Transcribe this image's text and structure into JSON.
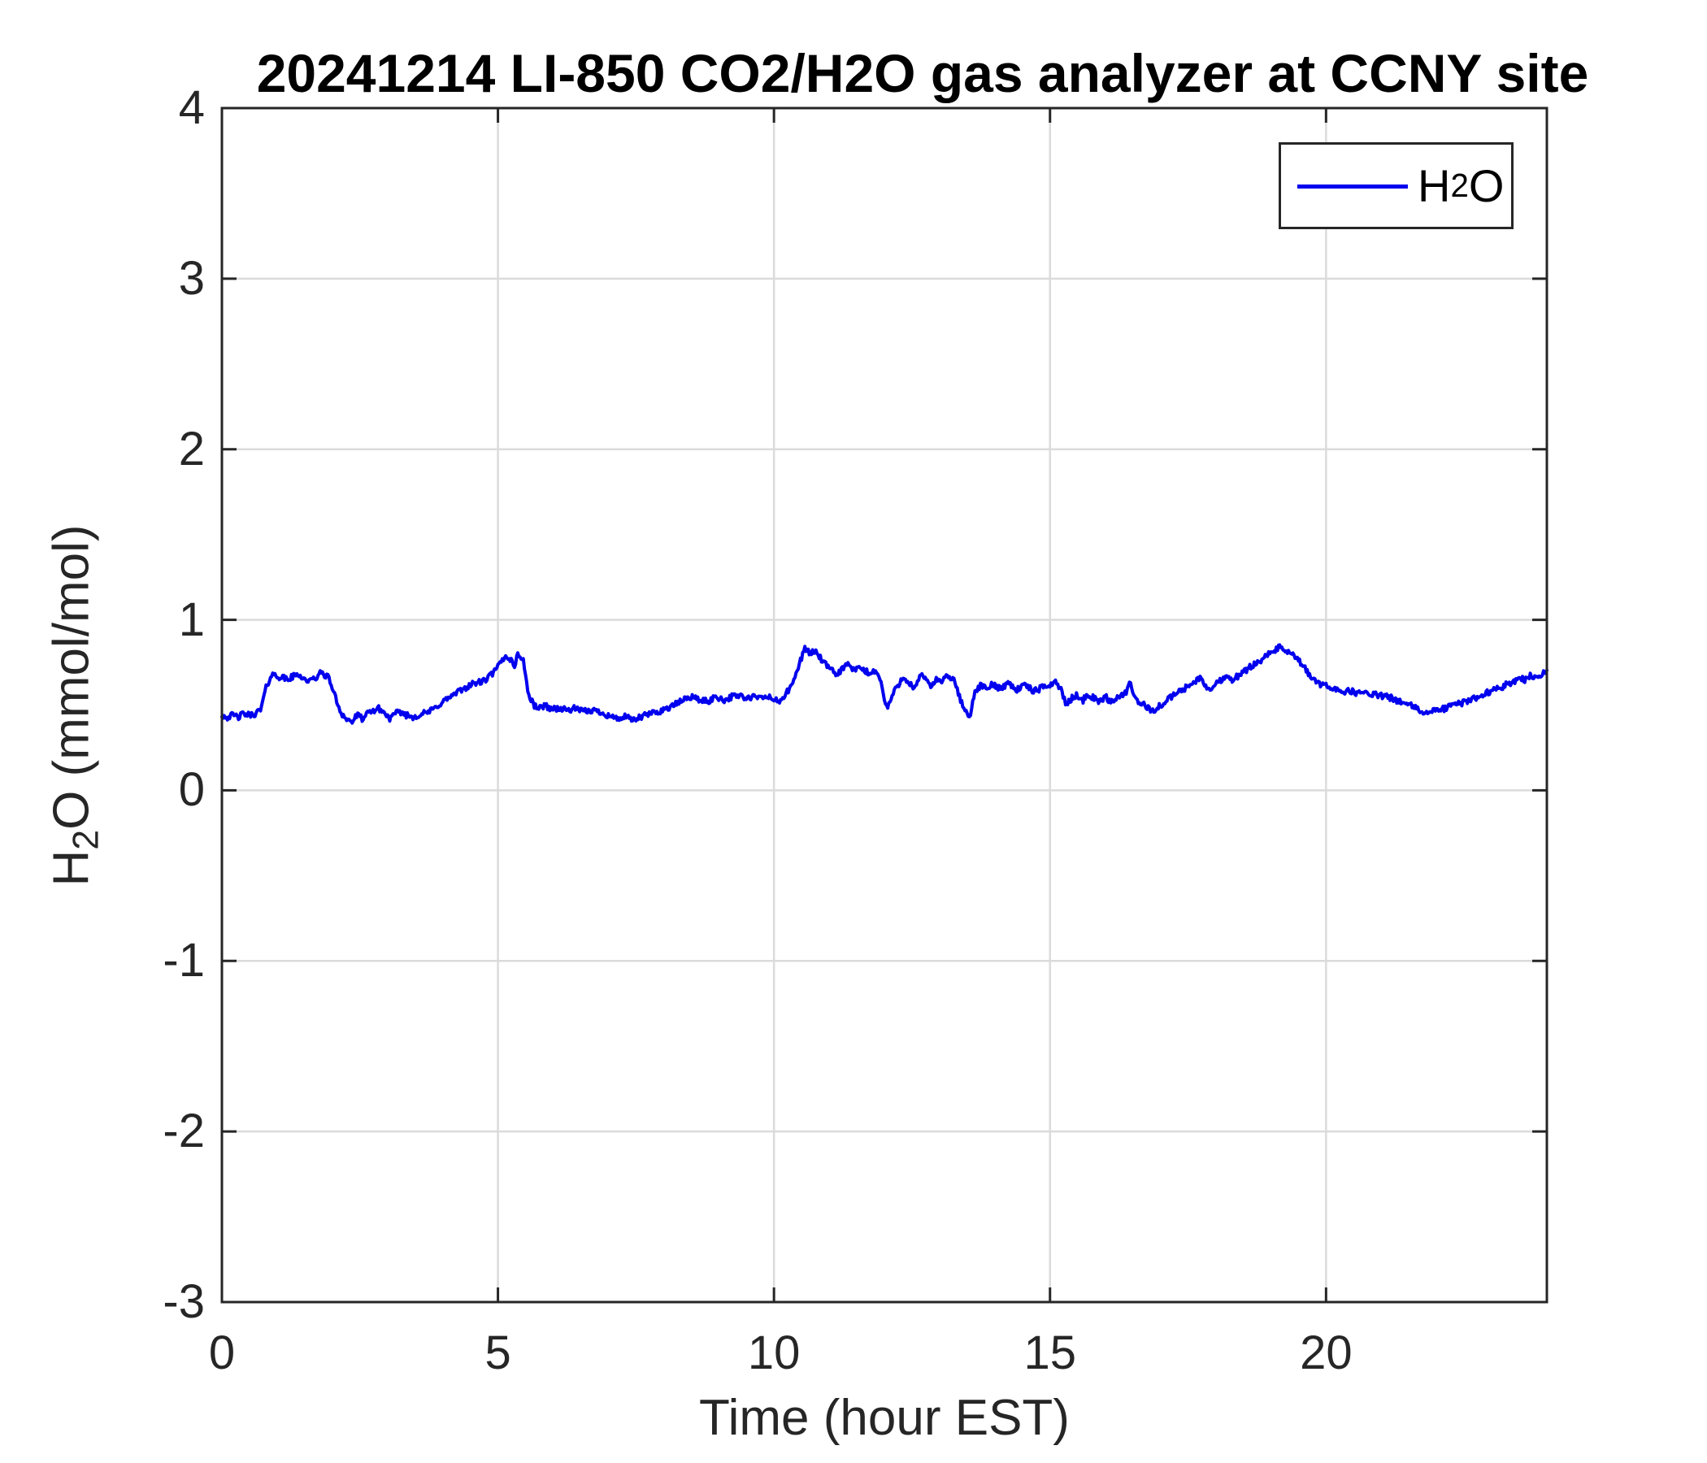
{
  "figure": {
    "title": "20241214 LI-850 CO2/H2O gas analyzer at CCNY site"
  },
  "colors": {
    "series_blue": "#0000EE",
    "axes": "#262626",
    "grid": "#DBDBDB",
    "background": "#FFFFFF",
    "title_text": "#000000"
  },
  "chart_data": {
    "type": "line",
    "title": "20241214 LI-850 CO2/H2O gas analyzer at CCNY site",
    "xlabel": "Time (hour EST)",
    "ylabel": {
      "prefix": "H",
      "sub": "2",
      "suffix": "O (mmol/mol)"
    },
    "ylabel_text": "H2O (mmol/mol)",
    "xlim": [
      0,
      24
    ],
    "ylim": [
      -3,
      4
    ],
    "x_ticks": [
      0,
      5,
      10,
      15,
      20
    ],
    "x_tick_labels": [
      "0",
      "5",
      "10",
      "15",
      "20"
    ],
    "y_ticks": [
      -3,
      -2,
      -1,
      0,
      1,
      2,
      3,
      4
    ],
    "y_tick_labels": [
      "-3",
      "-2",
      "-1",
      "0",
      "1",
      "2",
      "3",
      "4"
    ],
    "grid": true,
    "legend": {
      "position": "top-right",
      "entries": [
        {
          "label": {
            "prefix": "H",
            "sub": "2",
            "suffix": "O"
          },
          "label_text": "H2O",
          "color": "#0000EE"
        }
      ]
    },
    "noise_amplitude_mmol_mol": 0.018,
    "series": [
      {
        "name": "H2O",
        "units": "mmol/mol",
        "color": "#0000EE",
        "points": [
          [
            0.0,
            0.44
          ],
          [
            0.1,
            0.43
          ],
          [
            0.2,
            0.44
          ],
          [
            0.3,
            0.43
          ],
          [
            0.4,
            0.45
          ],
          [
            0.5,
            0.44
          ],
          [
            0.6,
            0.45
          ],
          [
            0.7,
            0.47
          ],
          [
            0.8,
            0.6
          ],
          [
            0.9,
            0.68
          ],
          [
            1.0,
            0.67
          ],
          [
            1.1,
            0.66
          ],
          [
            1.2,
            0.65
          ],
          [
            1.3,
            0.67
          ],
          [
            1.4,
            0.68
          ],
          [
            1.5,
            0.65
          ],
          [
            1.6,
            0.64
          ],
          [
            1.7,
            0.66
          ],
          [
            1.8,
            0.69
          ],
          [
            1.9,
            0.67
          ],
          [
            1.95,
            0.65
          ],
          [
            2.05,
            0.55
          ],
          [
            2.15,
            0.46
          ],
          [
            2.25,
            0.42
          ],
          [
            2.35,
            0.4
          ],
          [
            2.45,
            0.44
          ],
          [
            2.55,
            0.42
          ],
          [
            2.65,
            0.45
          ],
          [
            2.75,
            0.47
          ],
          [
            2.85,
            0.48
          ],
          [
            2.95,
            0.45
          ],
          [
            3.05,
            0.42
          ],
          [
            3.15,
            0.45
          ],
          [
            3.25,
            0.46
          ],
          [
            3.35,
            0.44
          ],
          [
            3.45,
            0.43
          ],
          [
            3.55,
            0.44
          ],
          [
            3.65,
            0.45
          ],
          [
            3.75,
            0.46
          ],
          [
            3.85,
            0.48
          ],
          [
            4.0,
            0.52
          ],
          [
            4.15,
            0.55
          ],
          [
            4.3,
            0.58
          ],
          [
            4.45,
            0.61
          ],
          [
            4.6,
            0.63
          ],
          [
            4.75,
            0.64
          ],
          [
            4.85,
            0.67
          ],
          [
            4.95,
            0.7
          ],
          [
            5.05,
            0.75
          ],
          [
            5.15,
            0.79
          ],
          [
            5.25,
            0.76
          ],
          [
            5.3,
            0.73
          ],
          [
            5.35,
            0.79
          ],
          [
            5.45,
            0.78
          ],
          [
            5.5,
            0.68
          ],
          [
            5.55,
            0.56
          ],
          [
            5.65,
            0.5
          ],
          [
            5.75,
            0.48
          ],
          [
            5.85,
            0.5
          ],
          [
            5.95,
            0.48
          ],
          [
            6.1,
            0.48
          ],
          [
            6.25,
            0.47
          ],
          [
            6.4,
            0.48
          ],
          [
            6.55,
            0.46
          ],
          [
            6.7,
            0.47
          ],
          [
            6.85,
            0.46
          ],
          [
            7.0,
            0.44
          ],
          [
            7.15,
            0.42
          ],
          [
            7.3,
            0.43
          ],
          [
            7.45,
            0.41
          ],
          [
            7.6,
            0.43
          ],
          [
            7.75,
            0.45
          ],
          [
            7.9,
            0.46
          ],
          [
            8.05,
            0.48
          ],
          [
            8.2,
            0.5
          ],
          [
            8.35,
            0.53
          ],
          [
            8.5,
            0.55
          ],
          [
            8.65,
            0.53
          ],
          [
            8.8,
            0.52
          ],
          [
            8.95,
            0.55
          ],
          [
            9.1,
            0.53
          ],
          [
            9.25,
            0.55
          ],
          [
            9.4,
            0.56
          ],
          [
            9.5,
            0.53
          ],
          [
            9.6,
            0.55
          ],
          [
            9.75,
            0.54
          ],
          [
            9.9,
            0.55
          ],
          [
            10.0,
            0.53
          ],
          [
            10.1,
            0.52
          ],
          [
            10.2,
            0.56
          ],
          [
            10.3,
            0.6
          ],
          [
            10.4,
            0.68
          ],
          [
            10.5,
            0.78
          ],
          [
            10.55,
            0.84
          ],
          [
            10.65,
            0.8
          ],
          [
            10.75,
            0.82
          ],
          [
            10.85,
            0.77
          ],
          [
            10.95,
            0.73
          ],
          [
            11.05,
            0.7
          ],
          [
            11.15,
            0.68
          ],
          [
            11.25,
            0.72
          ],
          [
            11.35,
            0.74
          ],
          [
            11.45,
            0.7
          ],
          [
            11.55,
            0.72
          ],
          [
            11.65,
            0.7
          ],
          [
            11.75,
            0.68
          ],
          [
            11.85,
            0.71
          ],
          [
            11.95,
            0.62
          ],
          [
            12.0,
            0.53
          ],
          [
            12.05,
            0.48
          ],
          [
            12.15,
            0.56
          ],
          [
            12.25,
            0.62
          ],
          [
            12.35,
            0.67
          ],
          [
            12.45,
            0.63
          ],
          [
            12.55,
            0.59
          ],
          [
            12.65,
            0.67
          ],
          [
            12.75,
            0.66
          ],
          [
            12.85,
            0.61
          ],
          [
            12.95,
            0.65
          ],
          [
            13.05,
            0.64
          ],
          [
            13.15,
            0.67
          ],
          [
            13.25,
            0.65
          ],
          [
            13.35,
            0.56
          ],
          [
            13.45,
            0.47
          ],
          [
            13.55,
            0.44
          ],
          [
            13.65,
            0.58
          ],
          [
            13.75,
            0.62
          ],
          [
            13.85,
            0.59
          ],
          [
            13.95,
            0.62
          ],
          [
            14.1,
            0.6
          ],
          [
            14.25,
            0.63
          ],
          [
            14.4,
            0.59
          ],
          [
            14.55,
            0.62
          ],
          [
            14.7,
            0.58
          ],
          [
            14.85,
            0.6
          ],
          [
            15.0,
            0.62
          ],
          [
            15.1,
            0.64
          ],
          [
            15.2,
            0.59
          ],
          [
            15.3,
            0.5
          ],
          [
            15.4,
            0.54
          ],
          [
            15.5,
            0.56
          ],
          [
            15.6,
            0.53
          ],
          [
            15.7,
            0.56
          ],
          [
            15.8,
            0.54
          ],
          [
            15.9,
            0.52
          ],
          [
            16.0,
            0.55
          ],
          [
            16.1,
            0.52
          ],
          [
            16.2,
            0.54
          ],
          [
            16.3,
            0.56
          ],
          [
            16.4,
            0.58
          ],
          [
            16.45,
            0.63
          ],
          [
            16.5,
            0.57
          ],
          [
            16.6,
            0.52
          ],
          [
            16.7,
            0.5
          ],
          [
            16.8,
            0.48
          ],
          [
            16.9,
            0.46
          ],
          [
            17.0,
            0.5
          ],
          [
            17.1,
            0.52
          ],
          [
            17.2,
            0.55
          ],
          [
            17.3,
            0.57
          ],
          [
            17.45,
            0.6
          ],
          [
            17.6,
            0.63
          ],
          [
            17.7,
            0.66
          ],
          [
            17.8,
            0.62
          ],
          [
            17.9,
            0.59
          ],
          [
            18.0,
            0.62
          ],
          [
            18.1,
            0.65
          ],
          [
            18.2,
            0.67
          ],
          [
            18.3,
            0.65
          ],
          [
            18.4,
            0.67
          ],
          [
            18.5,
            0.69
          ],
          [
            18.6,
            0.72
          ],
          [
            18.7,
            0.74
          ],
          [
            18.8,
            0.76
          ],
          [
            18.9,
            0.79
          ],
          [
            19.0,
            0.8
          ],
          [
            19.1,
            0.83
          ],
          [
            19.2,
            0.84
          ],
          [
            19.3,
            0.81
          ],
          [
            19.4,
            0.79
          ],
          [
            19.5,
            0.76
          ],
          [
            19.6,
            0.72
          ],
          [
            19.7,
            0.68
          ],
          [
            19.8,
            0.64
          ],
          [
            19.9,
            0.62
          ],
          [
            20.0,
            0.61
          ],
          [
            20.15,
            0.6
          ],
          [
            20.3,
            0.58
          ],
          [
            20.45,
            0.58
          ],
          [
            20.6,
            0.57
          ],
          [
            20.75,
            0.57
          ],
          [
            20.9,
            0.56
          ],
          [
            21.05,
            0.55
          ],
          [
            21.2,
            0.54
          ],
          [
            21.35,
            0.52
          ],
          [
            21.5,
            0.5
          ],
          [
            21.65,
            0.48
          ],
          [
            21.8,
            0.45
          ],
          [
            21.9,
            0.46
          ],
          [
            22.0,
            0.47
          ],
          [
            22.15,
            0.48
          ],
          [
            22.3,
            0.5
          ],
          [
            22.45,
            0.51
          ],
          [
            22.6,
            0.53
          ],
          [
            22.75,
            0.55
          ],
          [
            22.9,
            0.57
          ],
          [
            23.05,
            0.59
          ],
          [
            23.2,
            0.61
          ],
          [
            23.35,
            0.63
          ],
          [
            23.5,
            0.66
          ],
          [
            23.6,
            0.65
          ],
          [
            23.7,
            0.67
          ],
          [
            23.8,
            0.66
          ],
          [
            23.9,
            0.68
          ],
          [
            24.0,
            0.7
          ]
        ]
      }
    ]
  }
}
